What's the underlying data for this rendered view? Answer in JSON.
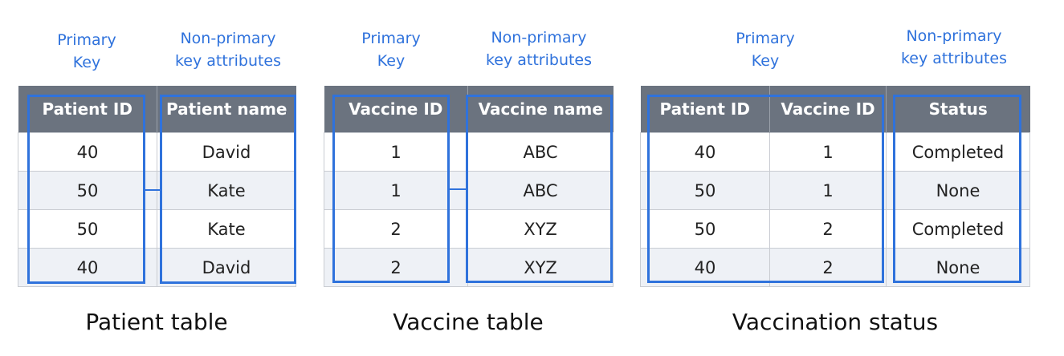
{
  "tables": [
    {
      "primary_key_label": "Primary\nKey",
      "non_primary_label": "Non-primary\nkey attributes",
      "headers": [
        "Patient ID",
        "Patient name"
      ],
      "rows": [
        [
          "40",
          "David"
        ],
        [
          "50",
          "Kate"
        ],
        [
          "50",
          "Kate"
        ],
        [
          "40",
          "David"
        ]
      ],
      "caption": "Patient table"
    },
    {
      "primary_key_label": "Primary\nKey",
      "non_primary_label": "Non-primary\nkey attributes",
      "headers": [
        "Vaccine ID",
        "Vaccine name"
      ],
      "rows": [
        [
          "1",
          "ABC"
        ],
        [
          "1",
          "ABC"
        ],
        [
          "2",
          "XYZ"
        ],
        [
          "2",
          "XYZ"
        ]
      ],
      "caption": "Vaccine table"
    },
    {
      "primary_key_label": "Primary\nKey",
      "non_primary_label": "Non-primary\nkey attributes",
      "headers": [
        "Patient ID",
        "Vaccine ID",
        "Status"
      ],
      "rows": [
        [
          "40",
          "1",
          "Completed"
        ],
        [
          "50",
          "1",
          "None"
        ],
        [
          "50",
          "2",
          "Completed"
        ],
        [
          "40",
          "2",
          "None"
        ]
      ],
      "caption": "Vaccination status"
    }
  ],
  "colors": {
    "accent": "#2f72dc",
    "header_bg": "#6b737f",
    "alt_row": "#eef1f6"
  }
}
